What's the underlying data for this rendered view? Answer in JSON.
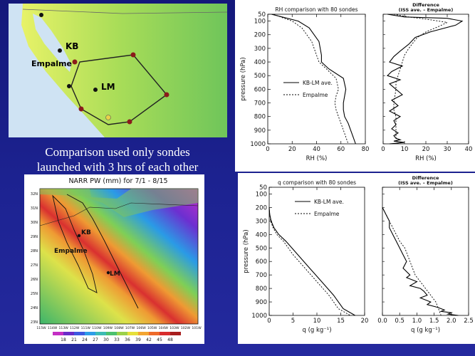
{
  "caption": {
    "line1": "Comparison used only sondes",
    "line2": "launched with 3 hrs of each other"
  },
  "map_top": {
    "labels": {
      "kb": "KB",
      "empalme": "Empalme",
      "lm": "LM"
    }
  },
  "narr_map": {
    "title": "NARR PW (mm) for 7/1 - 8/15",
    "labels": {
      "kb": "KB",
      "empalme": "Empalme",
      "lm": "LM"
    },
    "lat_ticks": [
      "32N",
      "31N",
      "30N",
      "29N",
      "28N",
      "27N",
      "26N",
      "25N",
      "24N",
      "23N"
    ],
    "lon_ticks": [
      "115W",
      "114W",
      "113W",
      "112W",
      "111W",
      "110W",
      "109W",
      "108W",
      "107W",
      "106W",
      "105W",
      "104W",
      "103W",
      "102W",
      "101W"
    ],
    "colorbar_ticks": [
      "18",
      "21",
      "24",
      "27",
      "30",
      "33",
      "36",
      "39",
      "42",
      "45",
      "48"
    ],
    "colorbar_colors": [
      "#c42fc4",
      "#6a2cc8",
      "#3e59e0",
      "#2e9de8",
      "#3dbbb4",
      "#4cc16e",
      "#9bd14a",
      "#e6e03a",
      "#f3a531",
      "#ee6a2a",
      "#d92d2d",
      "#a81f1f"
    ]
  },
  "chart_data": [
    {
      "type": "line",
      "title": "RH comparison with  80 sondes",
      "xlabel": "RH  (%)",
      "ylabel": "pressure (hPa)",
      "xlim": [
        0,
        80
      ],
      "ylim": [
        1000,
        50
      ],
      "xticks": [
        "0",
        "20",
        "40",
        "60",
        "80"
      ],
      "yticks": [
        "50",
        "100",
        "200",
        "300",
        "400",
        "500",
        "600",
        "700",
        "800",
        "900",
        "1000"
      ],
      "legend": "center-left",
      "series": [
        {
          "name": "KB-LM ave.",
          "x": [
            3,
            14,
            25,
            34,
            42,
            44,
            44,
            50,
            62,
            64,
            63,
            62,
            62,
            63,
            66,
            68,
            70,
            72
          ],
          "y": [
            50,
            75,
            100,
            150,
            250,
            350,
            400,
            450,
            520,
            600,
            650,
            700,
            750,
            800,
            850,
            900,
            950,
            1000
          ]
        },
        {
          "name": "Empalme",
          "x": [
            5,
            12,
            20,
            28,
            36,
            40,
            42,
            48,
            56,
            58,
            56,
            55,
            56,
            58,
            60,
            62,
            64,
            66
          ],
          "y": [
            50,
            75,
            100,
            150,
            250,
            350,
            400,
            450,
            520,
            600,
            650,
            700,
            750,
            800,
            850,
            900,
            950,
            1000
          ]
        }
      ]
    },
    {
      "type": "line",
      "title": "Difference\n(ISS ave. – Empalme)",
      "xlabel": "RH  (%)",
      "xlim": [
        0,
        40
      ],
      "ylim": [
        1000,
        50
      ],
      "xticks": [
        "0",
        "10",
        "20",
        "30",
        "40"
      ],
      "series": [
        {
          "x": [
            2,
            10,
            30,
            37,
            34,
            22,
            15,
            12,
            8,
            5,
            3,
            9,
            4,
            2,
            8,
            3,
            6,
            9,
            4,
            7,
            3,
            8,
            5,
            6,
            4,
            7,
            5,
            6,
            8,
            5,
            10,
            3
          ],
          "y": [
            50,
            70,
            80,
            100,
            130,
            180,
            220,
            270,
            320,
            360,
            400,
            430,
            470,
            500,
            530,
            560,
            600,
            640,
            680,
            720,
            760,
            800,
            830,
            860,
            890,
            920,
            940,
            960,
            970,
            980,
            990,
            1000
          ]
        },
        {
          "x": [
            5,
            12,
            22,
            30,
            26,
            20,
            16,
            14,
            12,
            10,
            9,
            8,
            7,
            6,
            6,
            5,
            5,
            6,
            6,
            6,
            7
          ],
          "y": [
            50,
            70,
            90,
            110,
            140,
            180,
            220,
            260,
            300,
            350,
            400,
            450,
            500,
            550,
            600,
            700,
            750,
            800,
            850,
            950,
            1000
          ]
        }
      ]
    },
    {
      "type": "line",
      "title": "q comparison with  80 sondes",
      "xlabel": "q  (g kg⁻¹)",
      "ylabel": "pressure (hPa)",
      "xlim": [
        0,
        20
      ],
      "ylim": [
        1000,
        50
      ],
      "xticks": [
        "0",
        "5",
        "10",
        "15",
        "20"
      ],
      "yticks": [
        "50",
        "100",
        "200",
        "300",
        "400",
        "500",
        "600",
        "700",
        "800",
        "900",
        "1000"
      ],
      "legend": "top-right",
      "series": [
        {
          "name": "KB-LM ave.",
          "x": [
            0,
            0.1,
            0.4,
            1.0,
            2.0,
            3.5,
            6.0,
            8.5,
            11.0,
            13.5,
            15.5,
            18.0
          ],
          "y": [
            200,
            250,
            300,
            350,
            400,
            450,
            550,
            650,
            750,
            850,
            950,
            1000
          ]
        },
        {
          "name": "Empalme",
          "x": [
            0,
            0.1,
            0.3,
            0.8,
            1.6,
            3.0,
            5.0,
            7.5,
            10.0,
            12.5,
            14.5,
            17.0
          ],
          "y": [
            200,
            250,
            300,
            350,
            400,
            450,
            550,
            650,
            750,
            850,
            950,
            1000
          ]
        }
      ]
    },
    {
      "type": "line",
      "title": "Difference\n(ISS ave. – Empalme)",
      "xlabel": "q  (g kg⁻¹)",
      "xlim": [
        0,
        2.5
      ],
      "ylim": [
        1000,
        50
      ],
      "xticks": [
        "0.0",
        "0.5",
        "1.0",
        "1.5",
        "2.0",
        "2.5"
      ],
      "series": [
        {
          "x": [
            0.0,
            0.1,
            0.2,
            0.2,
            0.3,
            0.4,
            0.5,
            0.6,
            0.7,
            0.6,
            0.8,
            0.7,
            1.0,
            0.8,
            1.1,
            1.2,
            1.3,
            1.1,
            1.4,
            1.3,
            1.6,
            1.8,
            1.7,
            2.0,
            1.9,
            2.2
          ],
          "y": [
            200,
            250,
            300,
            350,
            400,
            450,
            500,
            550,
            600,
            650,
            700,
            720,
            750,
            780,
            800,
            820,
            850,
            870,
            900,
            920,
            940,
            960,
            970,
            980,
            990,
            1000
          ]
        },
        {
          "x": [
            0.0,
            0.1,
            0.2,
            0.3,
            0.4,
            0.5,
            0.65,
            0.8,
            0.95,
            1.1,
            1.25,
            1.4,
            1.55,
            1.7
          ],
          "y": [
            200,
            250,
            300,
            350,
            400,
            450,
            500,
            600,
            700,
            750,
            800,
            850,
            900,
            1000
          ]
        }
      ]
    }
  ]
}
